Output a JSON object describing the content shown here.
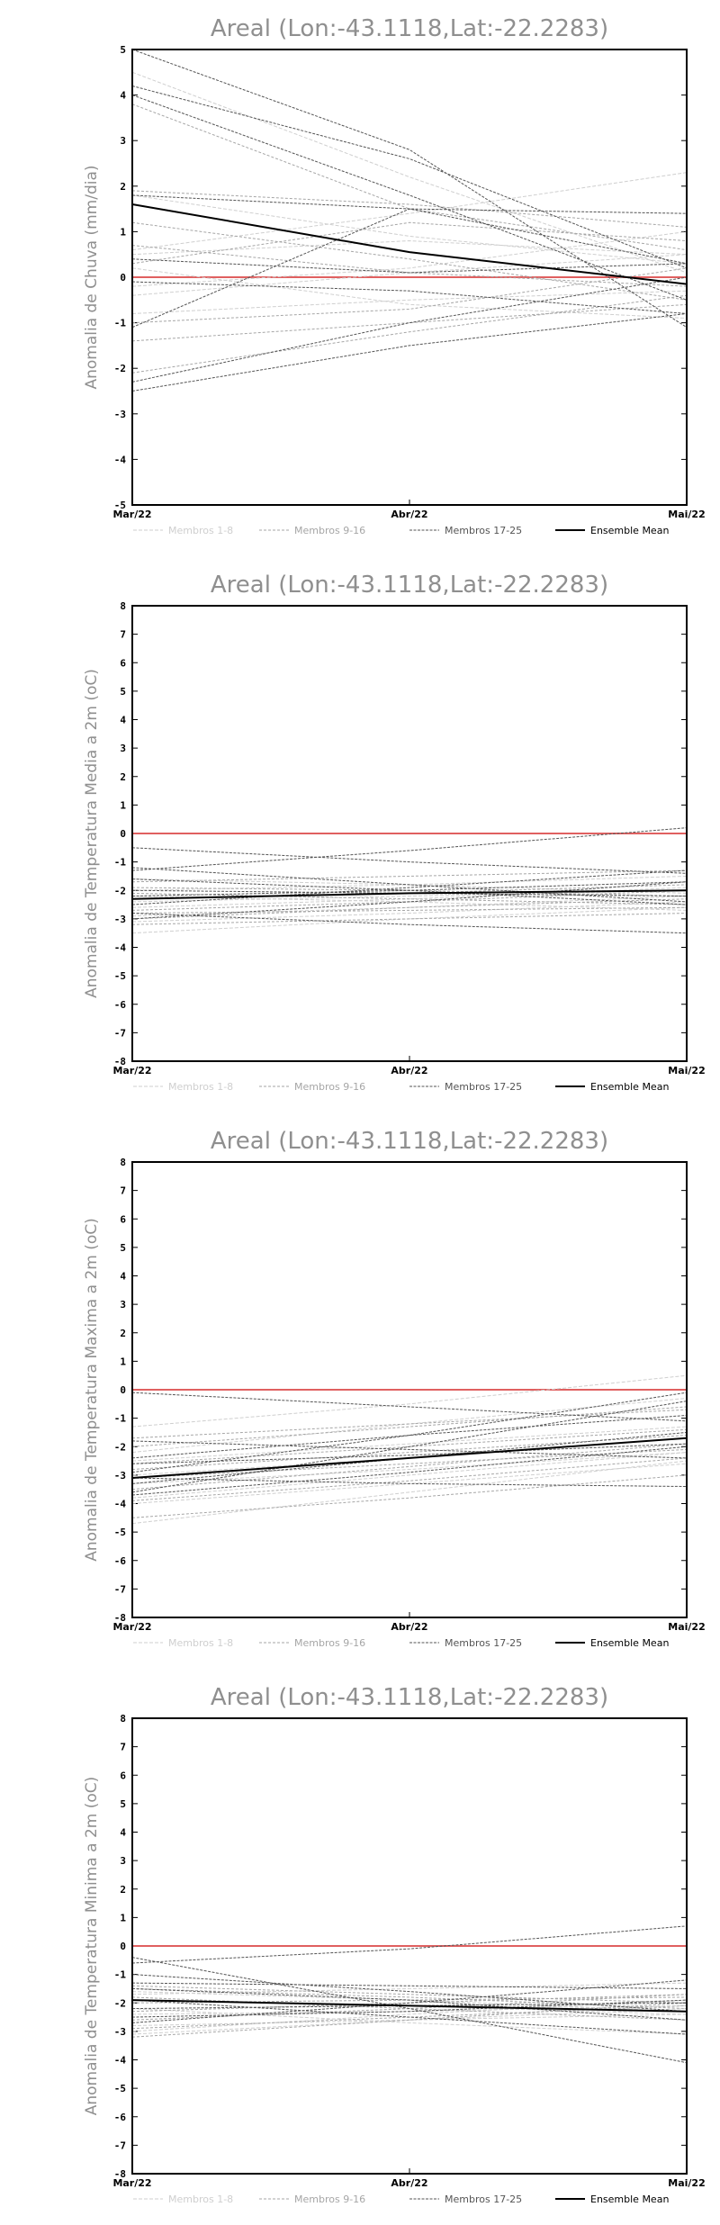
{
  "chart_data": [
    {
      "type": "line",
      "title": "Areal (Lon:-43.1118,Lat:-22.2283)",
      "xlabel": "",
      "ylabel": "Anomalia de Chuva (mm/dia)",
      "categories": [
        "Mar/22",
        "Abr/22",
        "Mai/22"
      ],
      "ylim": [
        -5,
        5
      ],
      "yticks": [
        -5,
        -4,
        -3,
        -2,
        -1,
        0,
        1,
        2,
        3,
        4,
        5
      ],
      "reference_line": {
        "y": 0,
        "color": "#e06060"
      },
      "legend": [
        "Membros 1-8",
        "Membros 9-16",
        "Membros 17-25",
        "Ensemble Mean"
      ],
      "series": [
        {
          "group": 0,
          "values": [
            0.2,
            -0.6,
            -0.9
          ]
        },
        {
          "group": 0,
          "values": [
            0.6,
            1.4,
            2.3
          ]
        },
        {
          "group": 0,
          "values": [
            -0.2,
            0.2,
            1.0
          ]
        },
        {
          "group": 0,
          "values": [
            0.5,
            0.8,
            0.5
          ]
        },
        {
          "group": 0,
          "values": [
            -0.8,
            -0.5,
            -0.3
          ]
        },
        {
          "group": 0,
          "values": [
            1.8,
            0.9,
            0.3
          ]
        },
        {
          "group": 0,
          "values": [
            4.5,
            2.2,
            0.1
          ]
        },
        {
          "group": 0,
          "values": [
            -0.4,
            0.1,
            0.5
          ]
        },
        {
          "group": 1,
          "values": [
            -1.4,
            -1.0,
            -0.6
          ]
        },
        {
          "group": 1,
          "values": [
            0.7,
            0.1,
            -0.2
          ]
        },
        {
          "group": 1,
          "values": [
            3.8,
            1.5,
            0.6
          ]
        },
        {
          "group": 1,
          "values": [
            -2.1,
            -1.2,
            -0.4
          ]
        },
        {
          "group": 1,
          "values": [
            1.2,
            0.4,
            -0.5
          ]
        },
        {
          "group": 1,
          "values": [
            0.3,
            1.2,
            0.8
          ]
        },
        {
          "group": 1,
          "values": [
            -1.0,
            -0.7,
            0.2
          ]
        },
        {
          "group": 1,
          "values": [
            1.9,
            1.6,
            1.1
          ]
        },
        {
          "group": 2,
          "values": [
            5.0,
            2.8,
            -1.1
          ]
        },
        {
          "group": 2,
          "values": [
            4.2,
            2.6,
            0.2
          ]
        },
        {
          "group": 2,
          "values": [
            4.0,
            1.8,
            -0.5
          ]
        },
        {
          "group": 2,
          "values": [
            -2.5,
            -1.5,
            -0.8
          ]
        },
        {
          "group": 2,
          "values": [
            -2.3,
            -1.0,
            0.0
          ]
        },
        {
          "group": 2,
          "values": [
            1.8,
            1.5,
            1.4
          ]
        },
        {
          "group": 2,
          "values": [
            -0.1,
            -0.3,
            -0.8
          ]
        },
        {
          "group": 2,
          "values": [
            0.4,
            0.1,
            0.3
          ]
        },
        {
          "group": 2,
          "values": [
            -1.1,
            1.5,
            0.3
          ]
        },
        {
          "group": 3,
          "name": "Ensemble Mean",
          "values": [
            1.6,
            0.55,
            -0.15
          ]
        }
      ]
    },
    {
      "type": "line",
      "title": "Areal (Lon:-43.1118,Lat:-22.2283)",
      "xlabel": "",
      "ylabel": "Anomalia de Temperatura Media a 2m (oC)",
      "categories": [
        "Mar/22",
        "Abr/22",
        "Mai/22"
      ],
      "ylim": [
        -8,
        8
      ],
      "yticks": [
        -8,
        -7,
        -6,
        -5,
        -4,
        -3,
        -2,
        -1,
        0,
        1,
        2,
        3,
        4,
        5,
        6,
        7,
        8
      ],
      "reference_line": {
        "y": 0,
        "color": "#e06060"
      },
      "legend": [
        "Membros 1-8",
        "Membros 9-16",
        "Membros 17-25",
        "Ensemble Mean"
      ],
      "series": [
        {
          "group": 0,
          "values": [
            -2.4,
            -2.2,
            -2.0
          ]
        },
        {
          "group": 0,
          "values": [
            -3.5,
            -3.0,
            -2.6
          ]
        },
        {
          "group": 0,
          "values": [
            -2.0,
            -1.8,
            -1.5
          ]
        },
        {
          "group": 0,
          "values": [
            -2.9,
            -2.6,
            -2.2
          ]
        },
        {
          "group": 0,
          "values": [
            -2.2,
            -2.4,
            -2.7
          ]
        },
        {
          "group": 0,
          "values": [
            -1.6,
            -1.8,
            -2.1
          ]
        },
        {
          "group": 0,
          "values": [
            -3.1,
            -2.8,
            -2.4
          ]
        },
        {
          "group": 0,
          "values": [
            -2.6,
            -2.3,
            -1.9
          ]
        },
        {
          "group": 1,
          "values": [
            -2.7,
            -2.4,
            -2.0
          ]
        },
        {
          "group": 1,
          "values": [
            -1.9,
            -2.0,
            -2.2
          ]
        },
        {
          "group": 1,
          "values": [
            -3.0,
            -2.6,
            -2.3
          ]
        },
        {
          "group": 1,
          "values": [
            -2.3,
            -2.1,
            -1.8
          ]
        },
        {
          "group": 1,
          "values": [
            -2.8,
            -2.7,
            -2.6
          ]
        },
        {
          "group": 1,
          "values": [
            -1.7,
            -1.5,
            -1.3
          ]
        },
        {
          "group": 1,
          "values": [
            -3.2,
            -3.0,
            -2.8
          ]
        },
        {
          "group": 1,
          "values": [
            -2.1,
            -2.3,
            -2.5
          ]
        },
        {
          "group": 2,
          "values": [
            -0.5,
            -1.0,
            -1.4
          ]
        },
        {
          "group": 2,
          "values": [
            -1.3,
            -0.6,
            0.2
          ]
        },
        {
          "group": 2,
          "values": [
            -2.8,
            -3.2,
            -3.5
          ]
        },
        {
          "group": 2,
          "values": [
            -1.2,
            -1.8,
            -2.4
          ]
        },
        {
          "group": 2,
          "values": [
            -2.5,
            -1.9,
            -1.3
          ]
        },
        {
          "group": 2,
          "values": [
            -2.0,
            -2.1,
            -2.2
          ]
        },
        {
          "group": 2,
          "values": [
            -3.0,
            -2.4,
            -1.7
          ]
        },
        {
          "group": 2,
          "values": [
            -1.6,
            -2.0,
            -2.5
          ]
        },
        {
          "group": 2,
          "values": [
            -2.2,
            -2.0,
            -1.7
          ]
        },
        {
          "group": 3,
          "name": "Ensemble Mean",
          "values": [
            -2.3,
            -2.1,
            -2.0
          ]
        }
      ]
    },
    {
      "type": "line",
      "title": "Areal (Lon:-43.1118,Lat:-22.2283)",
      "xlabel": "",
      "ylabel": "Anomalia de Temperatura Maxima a 2m (oC)",
      "categories": [
        "Mar/22",
        "Abr/22",
        "Mai/22"
      ],
      "ylim": [
        -8,
        8
      ],
      "yticks": [
        -8,
        -7,
        -6,
        -5,
        -4,
        -3,
        -2,
        -1,
        0,
        1,
        2,
        3,
        4,
        5,
        6,
        7,
        8
      ],
      "reference_line": {
        "y": 0,
        "color": "#e06060"
      },
      "legend": [
        "Membros 1-8",
        "Membros 9-16",
        "Membros 17-25",
        "Ensemble Mean"
      ],
      "series": [
        {
          "group": 0,
          "values": [
            -1.3,
            -0.5,
            0.5
          ]
        },
        {
          "group": 0,
          "values": [
            -4.7,
            -3.6,
            -2.5
          ]
        },
        {
          "group": 0,
          "values": [
            -3.0,
            -2.4,
            -1.7
          ]
        },
        {
          "group": 0,
          "values": [
            -2.5,
            -1.9,
            -1.3
          ]
        },
        {
          "group": 0,
          "values": [
            -3.8,
            -3.0,
            -2.2
          ]
        },
        {
          "group": 0,
          "values": [
            -2.2,
            -1.2,
            -0.3
          ]
        },
        {
          "group": 0,
          "values": [
            -3.3,
            -2.8,
            -2.2
          ]
        },
        {
          "group": 0,
          "values": [
            -4.0,
            -3.3,
            -2.6
          ]
        },
        {
          "group": 1,
          "values": [
            -2.8,
            -2.2,
            -1.6
          ]
        },
        {
          "group": 1,
          "values": [
            -3.5,
            -2.7,
            -1.9
          ]
        },
        {
          "group": 1,
          "values": [
            -4.5,
            -3.8,
            -3.0
          ]
        },
        {
          "group": 1,
          "values": [
            -2.0,
            -1.3,
            -0.6
          ]
        },
        {
          "group": 1,
          "values": [
            -3.1,
            -2.6,
            -2.1
          ]
        },
        {
          "group": 1,
          "values": [
            -2.6,
            -2.0,
            -1.4
          ]
        },
        {
          "group": 1,
          "values": [
            -3.9,
            -3.2,
            -2.4
          ]
        },
        {
          "group": 1,
          "values": [
            -1.7,
            -1.2,
            -0.7
          ]
        },
        {
          "group": 2,
          "values": [
            -0.1,
            -0.6,
            -1.1
          ]
        },
        {
          "group": 2,
          "values": [
            -3.6,
            -2.0,
            -0.4
          ]
        },
        {
          "group": 2,
          "values": [
            -3.1,
            -3.3,
            -3.4
          ]
        },
        {
          "group": 2,
          "values": [
            -2.4,
            -1.6,
            -0.9
          ]
        },
        {
          "group": 2,
          "values": [
            -3.3,
            -2.4,
            -1.5
          ]
        },
        {
          "group": 2,
          "values": [
            -1.8,
            -2.1,
            -2.4
          ]
        },
        {
          "group": 2,
          "values": [
            -2.9,
            -1.6,
            -0.1
          ]
        },
        {
          "group": 2,
          "values": [
            -3.7,
            -2.9,
            -2.0
          ]
        },
        {
          "group": 2,
          "values": [
            -2.6,
            -2.3,
            -1.9
          ]
        },
        {
          "group": 3,
          "name": "Ensemble Mean",
          "values": [
            -3.1,
            -2.4,
            -1.7
          ]
        }
      ]
    },
    {
      "type": "line",
      "title": "Areal (Lon:-43.1118,Lat:-22.2283)",
      "xlabel": "",
      "ylabel": "Anomalia de Temperatura Minima a 2m (oC)",
      "categories": [
        "Mar/22",
        "Abr/22",
        "Mai/22"
      ],
      "ylim": [
        -8,
        8
      ],
      "yticks": [
        -8,
        -7,
        -6,
        -5,
        -4,
        -3,
        -2,
        -1,
        0,
        1,
        2,
        3,
        4,
        5,
        6,
        7,
        8
      ],
      "reference_line": {
        "y": 0,
        "color": "#e06060"
      },
      "legend": [
        "Membros 1-8",
        "Membros 9-16",
        "Membros 17-25",
        "Ensemble Mean"
      ],
      "series": [
        {
          "group": 0,
          "values": [
            -3.1,
            -2.6,
            -2.2
          ]
        },
        {
          "group": 0,
          "values": [
            -1.6,
            -1.9,
            -2.3
          ]
        },
        {
          "group": 0,
          "values": [
            -2.4,
            -2.3,
            -2.1
          ]
        },
        {
          "group": 0,
          "values": [
            -2.8,
            -2.6,
            -2.4
          ]
        },
        {
          "group": 0,
          "values": [
            -1.9,
            -2.1,
            -2.4
          ]
        },
        {
          "group": 0,
          "values": [
            -2.2,
            -2.7,
            -3.1
          ]
        },
        {
          "group": 0,
          "values": [
            -3.0,
            -2.4,
            -1.9
          ]
        },
        {
          "group": 0,
          "values": [
            -1.7,
            -1.5,
            -1.3
          ]
        },
        {
          "group": 1,
          "values": [
            -2.0,
            -1.9,
            -1.8
          ]
        },
        {
          "group": 1,
          "values": [
            -2.6,
            -2.2,
            -1.7
          ]
        },
        {
          "group": 1,
          "values": [
            -1.4,
            -1.7,
            -2.0
          ]
        },
        {
          "group": 1,
          "values": [
            -2.9,
            -2.5,
            -2.1
          ]
        },
        {
          "group": 1,
          "values": [
            -1.8,
            -2.2,
            -2.6
          ]
        },
        {
          "group": 1,
          "values": [
            -3.2,
            -2.6,
            -2.0
          ]
        },
        {
          "group": 1,
          "values": [
            -2.3,
            -2.0,
            -1.7
          ]
        },
        {
          "group": 1,
          "values": [
            -1.5,
            -1.8,
            -2.2
          ]
        },
        {
          "group": 2,
          "values": [
            -0.6,
            -0.1,
            0.7
          ]
        },
        {
          "group": 2,
          "values": [
            -0.4,
            -2.2,
            -4.1
          ]
        },
        {
          "group": 2,
          "values": [
            -1.3,
            -1.4,
            -1.5
          ]
        },
        {
          "group": 2,
          "values": [
            -2.7,
            -2.0,
            -1.2
          ]
        },
        {
          "group": 2,
          "values": [
            -1.9,
            -2.5,
            -3.1
          ]
        },
        {
          "group": 2,
          "values": [
            -1.5,
            -1.9,
            -2.6
          ]
        },
        {
          "group": 2,
          "values": [
            -2.2,
            -2.1,
            -2.0
          ]
        },
        {
          "group": 2,
          "values": [
            -1.0,
            -1.6,
            -2.3
          ]
        },
        {
          "group": 2,
          "values": [
            -2.5,
            -2.3,
            -1.9
          ]
        },
        {
          "group": 3,
          "name": "Ensemble Mean",
          "values": [
            -1.9,
            -2.1,
            -2.3
          ]
        }
      ]
    }
  ],
  "style": {
    "group_colors": [
      "#cfcfcf",
      "#a6a6a6",
      "#555555",
      "#000000"
    ],
    "title_color": "#8f8f8f",
    "label_color": "#8f8f8f",
    "zero_line_color": "#e06060"
  }
}
